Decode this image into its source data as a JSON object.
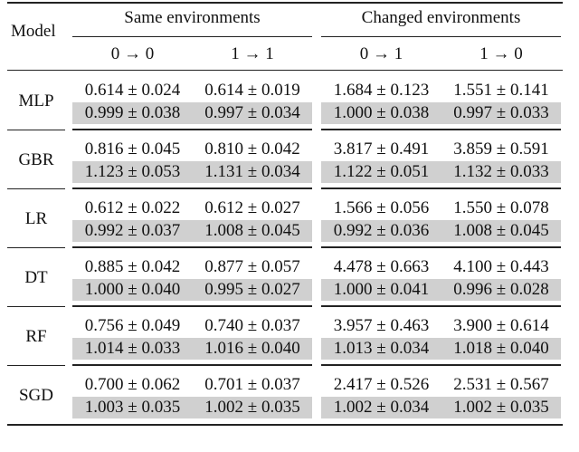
{
  "table": {
    "header": {
      "model": "Model",
      "groups": [
        "Same environments",
        "Changed environments"
      ],
      "columns": [
        "0 → 0",
        "1 → 1",
        "0 → 1",
        "1 → 0"
      ]
    },
    "shaded_row_color": "#d0d0d0",
    "models": [
      {
        "name": "MLP",
        "rows": [
          [
            "0.614 ± 0.024",
            "0.614 ± 0.019",
            "1.684 ± 0.123",
            "1.551 ± 0.141"
          ],
          [
            "0.999 ± 0.038",
            "0.997 ± 0.034",
            "1.000 ± 0.038",
            "0.997 ± 0.033"
          ]
        ]
      },
      {
        "name": "GBR",
        "rows": [
          [
            "0.816 ± 0.045",
            "0.810 ± 0.042",
            "3.817 ± 0.491",
            "3.859 ± 0.591"
          ],
          [
            "1.123 ± 0.053",
            "1.131 ± 0.034",
            "1.122 ± 0.051",
            "1.132 ± 0.033"
          ]
        ]
      },
      {
        "name": "LR",
        "rows": [
          [
            "0.612 ± 0.022",
            "0.612 ± 0.027",
            "1.566 ± 0.056",
            "1.550 ± 0.078"
          ],
          [
            "0.992 ± 0.037",
            "1.008 ± 0.045",
            "0.992 ± 0.036",
            "1.008 ± 0.045"
          ]
        ]
      },
      {
        "name": "DT",
        "rows": [
          [
            "0.885 ± 0.042",
            "0.877 ± 0.057",
            "4.478 ± 0.663",
            "4.100 ± 0.443"
          ],
          [
            "1.000 ± 0.040",
            "0.995 ± 0.027",
            "1.000 ± 0.041",
            "0.996 ± 0.028"
          ]
        ]
      },
      {
        "name": "RF",
        "rows": [
          [
            "0.756 ± 0.049",
            "0.740 ± 0.037",
            "3.957 ± 0.463",
            "3.900 ± 0.614"
          ],
          [
            "1.014 ± 0.033",
            "1.016 ± 0.040",
            "1.013 ± 0.034",
            "1.018 ± 0.040"
          ]
        ]
      },
      {
        "name": "SGD",
        "rows": [
          [
            "0.700 ± 0.062",
            "0.701 ± 0.037",
            "2.417 ± 0.526",
            "2.531 ± 0.567"
          ],
          [
            "1.003 ± 0.035",
            "1.002 ± 0.035",
            "1.002 ± 0.034",
            "1.002 ± 0.035"
          ]
        ]
      }
    ]
  }
}
